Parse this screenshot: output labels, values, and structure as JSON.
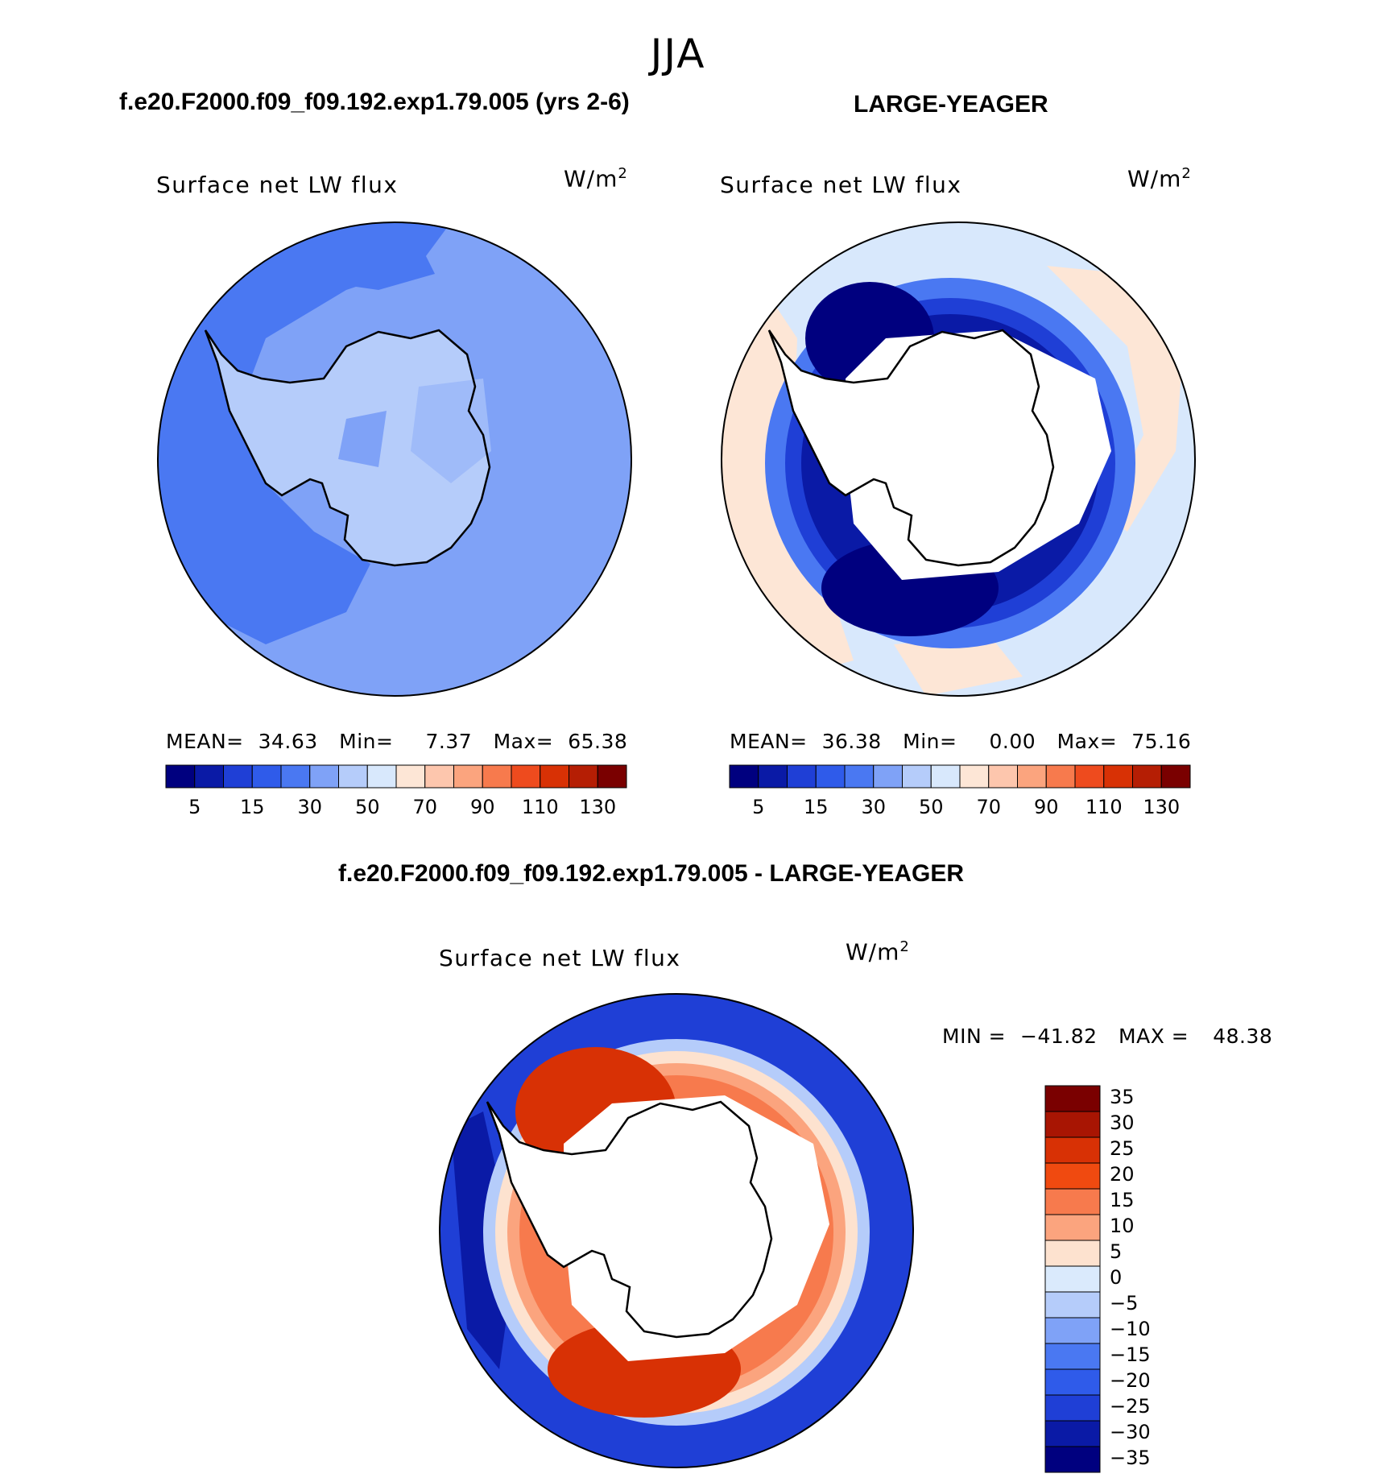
{
  "figure": {
    "season": "JJA",
    "left_title": "f.e20.F2000.f09_f09.192.exp1.79.005 (yrs 2-6)",
    "right_title": "LARGE-YEAGER",
    "diff_title": "f.e20.F2000.f09_f09.192.exp1.79.005 - LARGE-YEAGER"
  },
  "chart_data": [
    {
      "type": "contour-map",
      "projection": "south polar stereographic",
      "title": "Surface net LW flux",
      "units": "W/m²",
      "units_base": "W/m",
      "units_exp": "2",
      "stats": {
        "mean_label": "MEAN=",
        "mean": "34.63",
        "min_label": "Min=",
        "min": "7.37",
        "max_label": "Max=",
        "max": "65.38"
      },
      "colorbar": {
        "levels": [
          5,
          10,
          15,
          20,
          30,
          40,
          50,
          60,
          70,
          80,
          90,
          100,
          110,
          120,
          130
        ],
        "tick_labels": [
          "5",
          "15",
          "30",
          "50",
          "70",
          "90",
          "110",
          "130"
        ],
        "colors": [
          "#00007f",
          "#0a1aa6",
          "#1f3fd6",
          "#2f5bea",
          "#4a78f2",
          "#7fa2f7",
          "#b5ccfa",
          "#d8e8fc",
          "#fde6d6",
          "#fdc6ad",
          "#fba47e",
          "#f77a4d",
          "#ee4b1e",
          "#d83105",
          "#b51e04",
          "#7a0000"
        ]
      }
    },
    {
      "type": "contour-map",
      "projection": "south polar stereographic",
      "title": "Surface net LW flux",
      "units": "W/m²",
      "units_base": "W/m",
      "units_exp": "2",
      "stats": {
        "mean_label": "MEAN=",
        "mean": "36.38",
        "min_label": "Min=",
        "min": "0.00",
        "max_label": "Max=",
        "max": "75.16"
      },
      "colorbar": {
        "levels": [
          5,
          10,
          15,
          20,
          30,
          40,
          50,
          60,
          70,
          80,
          90,
          100,
          110,
          120,
          130
        ],
        "tick_labels": [
          "5",
          "15",
          "30",
          "50",
          "70",
          "90",
          "110",
          "130"
        ]
      }
    },
    {
      "type": "contour-map",
      "projection": "south polar stereographic",
      "title": "Surface net LW flux",
      "units": "W/m²",
      "units_base": "W/m",
      "units_exp": "2",
      "stats": {
        "min_label": "MIN =",
        "min": "−41.82",
        "max_label": "MAX =",
        "max": "48.38"
      },
      "colorbar": {
        "orientation": "vertical",
        "levels": [
          35,
          30,
          25,
          20,
          15,
          10,
          5,
          0,
          -5,
          -10,
          -15,
          -20,
          -25,
          -30,
          -35
        ],
        "tick_labels": [
          "35",
          "30",
          "25",
          "20",
          "15",
          "10",
          "5",
          "0",
          "−5",
          "−10",
          "−15",
          "−20",
          "−25",
          "−30",
          "−35"
        ],
        "colors": [
          "#7a0000",
          "#a81503",
          "#d83105",
          "#f04a10",
          "#f77a4d",
          "#fba47e",
          "#fde2cf",
          "#daeafc",
          "#b5ccfa",
          "#7fa2f7",
          "#4a78f2",
          "#2f5bea",
          "#1f3fd6",
          "#0a1aa6",
          "#00007f"
        ]
      }
    }
  ]
}
